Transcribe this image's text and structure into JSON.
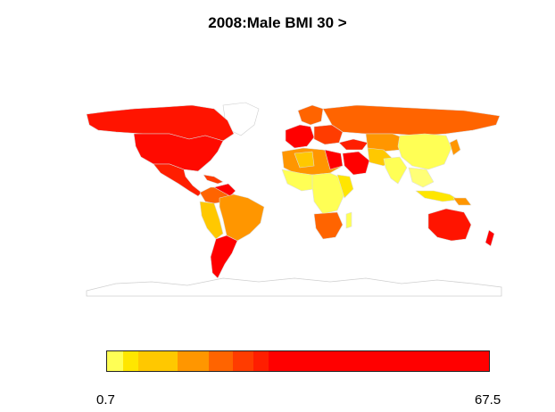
{
  "title": "2008:Male BMI 30 >",
  "legend": {
    "min_label": "0.7",
    "max_label": "67.5",
    "min": 0.7,
    "max": 67.5,
    "colors": [
      "#ffff55",
      "#ffe600",
      "#ffc800",
      "#ff9600",
      "#ff6400",
      "#ff3c00",
      "#ff1e00",
      "#ff0000"
    ],
    "weights": [
      1,
      1,
      2.5,
      2,
      1.5,
      1.3,
      1,
      14
    ]
  },
  "map": {
    "border_color": "#c8c8c8",
    "antarctica_color": "#ffffff"
  }
}
